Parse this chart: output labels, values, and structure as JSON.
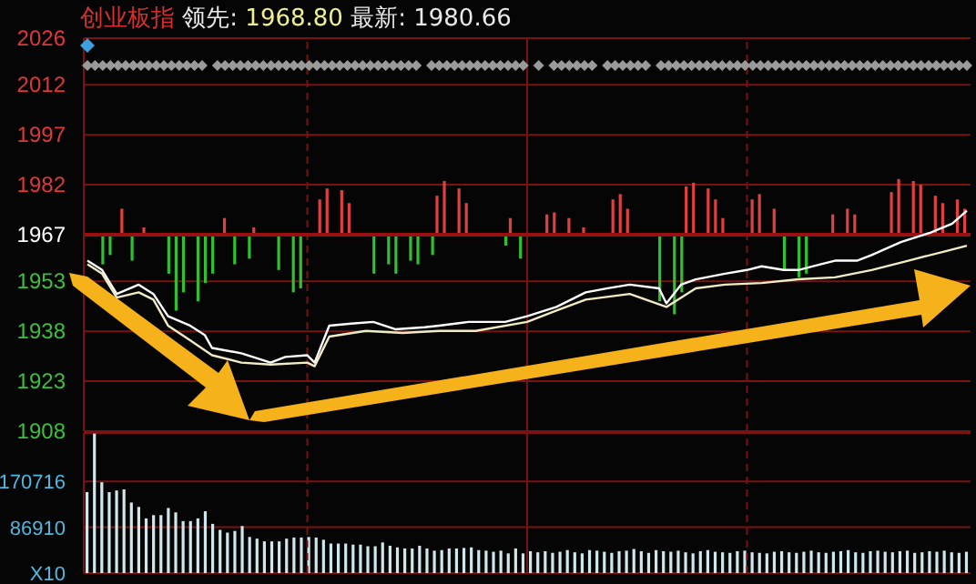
{
  "chart_data": [
    {
      "type": "line",
      "title": "创业板指 领先: 1968.80 最新: 1980.66",
      "categories": [
        null,
        null,
        null,
        null,
        null,
        null,
        null,
        null,
        null,
        null,
        null,
        null,
        null,
        null,
        null,
        null,
        null,
        null,
        null,
        null,
        null,
        null,
        null,
        null,
        null,
        null,
        null,
        null,
        null,
        null,
        null,
        null,
        null,
        null,
        null,
        null,
        null,
        null,
        null,
        null,
        null,
        null,
        null,
        null,
        null,
        null,
        null,
        null,
        null,
        null,
        null,
        null,
        null,
        null,
        null,
        null,
        null,
        null,
        null,
        null,
        null,
        null,
        null,
        null,
        null,
        null,
        null,
        null,
        null,
        null,
        null,
        null,
        null,
        null,
        null,
        null,
        null,
        null,
        null,
        null,
        null,
        null,
        null,
        null,
        null,
        null,
        null,
        null,
        null,
        null,
        null,
        null,
        null,
        null,
        null,
        null,
        null,
        null,
        null,
        null,
        null,
        null,
        null,
        null,
        null,
        null,
        null,
        null,
        null,
        null,
        null,
        null,
        null,
        null,
        null,
        null,
        null,
        null,
        null,
        null,
        null
      ],
      "ylim": [
        1908,
        2026
      ],
      "yticks": [
        1908,
        1923,
        1938,
        1953,
        1967,
        1982,
        1997,
        2012,
        2026
      ],
      "grid": true,
      "tick_labels": "y",
      "ref_lines": [
        {
          "axis": "y",
          "value": 1967,
          "color": "#9a1010"
        }
      ],
      "series": [
        {
          "type": "bar",
          "color": "#e04040",
          "base": [
            null,
            null,
            null,
            null,
            null,
            1967,
            null,
            null,
            1967,
            null,
            null,
            null,
            null,
            null,
            null,
            null,
            null,
            null,
            null,
            1967,
            null,
            null,
            null,
            1967,
            null,
            null,
            null,
            null,
            null,
            null,
            null,
            null,
            1967,
            1967,
            null,
            1967,
            1967,
            null,
            null,
            null,
            null,
            null,
            null,
            null,
            null,
            null,
            null,
            null,
            1967,
            1967,
            null,
            1967,
            1967,
            null,
            null,
            null,
            null,
            null,
            1967,
            null,
            null,
            null,
            null,
            1967,
            1967,
            null,
            1967,
            null,
            1967,
            null,
            null,
            null,
            1967,
            1967,
            1967,
            null,
            null,
            null,
            null,
            null,
            null,
            null,
            1967,
            1967,
            null,
            1967,
            1967,
            1967,
            null,
            null,
            null,
            1967,
            1967,
            null,
            1967,
            null,
            null,
            null,
            null,
            null,
            null,
            null,
            1967,
            null,
            1967,
            1967,
            null,
            null,
            null,
            null,
            1967,
            1967,
            null,
            1967,
            1967,
            null,
            1967,
            1967,
            null,
            1967,
            1967
          ],
          "values": [
            null,
            null,
            null,
            null,
            null,
            7.8,
            null,
            null,
            2.2,
            null,
            null,
            null,
            null,
            null,
            null,
            null,
            null,
            null,
            null,
            5.0,
            null,
            null,
            null,
            2.2,
            null,
            null,
            null,
            null,
            null,
            null,
            null,
            null,
            10.6,
            13.9,
            null,
            13.4,
            9.5,
            null,
            null,
            null,
            null,
            null,
            null,
            null,
            null,
            null,
            null,
            null,
            11.7,
            16.1,
            null,
            13.9,
            9.5,
            null,
            null,
            null,
            null,
            null,
            5.0,
            null,
            null,
            null,
            null,
            6.1,
            6.7,
            null,
            5.0,
            null,
            2.2,
            null,
            null,
            null,
            10.6,
            12.2,
            7.8,
            null,
            null,
            null,
            null,
            null,
            null,
            null,
            14.5,
            15.6,
            null,
            13.9,
            10.6,
            5.0,
            null,
            null,
            null,
            10.6,
            12.2,
            null,
            7.8,
            null,
            null,
            null,
            null,
            null,
            null,
            null,
            6.1,
            null,
            7.8,
            6.1,
            null,
            null,
            null,
            null,
            12.8,
            16.7,
            null,
            16.1,
            15.0,
            null,
            11.7,
            9.5,
            null,
            10.6,
            7.8
          ]
        },
        {
          "type": "bar",
          "color": "#30c030",
          "base": [
            null,
            null,
            1967,
            1967,
            null,
            null,
            1967,
            null,
            null,
            null,
            null,
            1967,
            1967,
            1967,
            null,
            1967,
            1967,
            1967,
            null,
            null,
            1967,
            null,
            1967,
            null,
            null,
            null,
            1967,
            null,
            1967,
            1967,
            null,
            null,
            null,
            null,
            null,
            null,
            null,
            null,
            null,
            1967,
            null,
            1967,
            1967,
            null,
            1967,
            1967,
            null,
            1967,
            null,
            null,
            null,
            null,
            null,
            null,
            null,
            null,
            null,
            1967,
            null,
            1967,
            null,
            null,
            null,
            null,
            null,
            null,
            null,
            null,
            null,
            null,
            null,
            null,
            null,
            null,
            null,
            null,
            null,
            null,
            1967,
            null,
            1967,
            1967,
            null,
            null,
            null,
            null,
            null,
            null,
            null,
            null,
            null,
            null,
            null,
            null,
            null,
            1967,
            null,
            1967,
            1967,
            null,
            null,
            null,
            null,
            null,
            null,
            null,
            null,
            null,
            null,
            null,
            null,
            null,
            null,
            null,
            null,
            null,
            null,
            null,
            null,
            null,
            null
          ],
          "values": [
            null,
            null,
            -8.9,
            -6.1,
            null,
            null,
            -7.8,
            null,
            null,
            null,
            null,
            -11.7,
            -22.8,
            -17.3,
            null,
            -20.0,
            -14.5,
            -11.7,
            null,
            null,
            -8.9,
            null,
            -7.2,
            null,
            null,
            null,
            -10.6,
            null,
            -17.3,
            -16.1,
            null,
            null,
            null,
            null,
            null,
            null,
            null,
            null,
            null,
            -11.7,
            null,
            -8.9,
            -11.7,
            null,
            -7.8,
            -8.9,
            null,
            -6.1,
            null,
            null,
            null,
            null,
            null,
            null,
            null,
            null,
            null,
            -3.3,
            null,
            -7.2,
            null,
            null,
            null,
            null,
            null,
            null,
            null,
            null,
            null,
            null,
            null,
            null,
            null,
            null,
            null,
            null,
            null,
            null,
            -20.0,
            null,
            -23.9,
            -17.3,
            null,
            null,
            null,
            null,
            null,
            null,
            null,
            null,
            null,
            null,
            null,
            null,
            null,
            -10.6,
            null,
            -12.8,
            -11.7,
            null,
            null,
            null,
            null,
            null,
            null,
            null,
            null,
            null,
            null,
            null,
            null,
            null,
            null,
            null,
            null,
            null,
            null,
            null,
            null,
            null,
            null
          ]
        },
        {
          "color": "#ffffff",
          "values": [
            1959.2,
            null,
            1956.4,
            null,
            1949.2,
            null,
            null,
            1952.0,
            null,
            1949.2,
            null,
            1942.5,
            null,
            null,
            1939.7,
            null,
            1936.9,
            1933.0,
            null,
            null,
            null,
            1931.4,
            null,
            null,
            null,
            1928.6,
            null,
            1930.3,
            null,
            null,
            1930.8,
            1928.6,
            null,
            1939.7,
            null,
            null,
            1940.3,
            null,
            null,
            1940.8,
            null,
            null,
            1938.6,
            null,
            null,
            null,
            1939.2,
            null,
            1939.7,
            null,
            null,
            null,
            1940.8,
            null,
            null,
            null,
            null,
            1940.8,
            null,
            null,
            1942.5,
            null,
            null,
            null,
            1945.3,
            null,
            null,
            null,
            1949.7,
            null,
            null,
            1950.9,
            null,
            null,
            1952.0,
            null,
            null,
            null,
            1950.9,
            1946.4,
            null,
            1952.0,
            null,
            1953.6,
            null,
            null,
            null,
            1955.3,
            null,
            null,
            1956.4,
            null,
            1957.5,
            null,
            null,
            1956.4,
            null,
            1956.4,
            null,
            null,
            1958.1,
            null,
            1959.2,
            null,
            null,
            1959.2,
            null,
            1960.9,
            null,
            null,
            null,
            1964.8,
            null,
            null,
            null,
            1967.6,
            null,
            null,
            1970.3,
            null,
            1974.2
          ]
        },
        {
          "color": "#f2ecc4",
          "values": [
            1958.1,
            null,
            1955.3,
            null,
            1948.1,
            null,
            null,
            1949.7,
            null,
            1947.5,
            null,
            1939.7,
            null,
            null,
            1935.3,
            null,
            null,
            1930.8,
            null,
            null,
            null,
            1928.6,
            null,
            null,
            null,
            1928.0,
            null,
            null,
            null,
            null,
            1928.6,
            1927.5,
            null,
            1936.4,
            null,
            null,
            null,
            null,
            1938.1,
            null,
            null,
            null,
            null,
            1937.5,
            null,
            null,
            null,
            null,
            1938.1,
            null,
            null,
            null,
            null,
            1938.1,
            null,
            null,
            null,
            null,
            null,
            null,
            1940.8,
            null,
            null,
            null,
            1944.2,
            null,
            null,
            null,
            1947.5,
            null,
            null,
            null,
            null,
            null,
            1949.2,
            null,
            null,
            null,
            null,
            1945.3,
            null,
            null,
            null,
            1950.9,
            null,
            null,
            null,
            1952.0,
            null,
            null,
            null,
            null,
            1952.5,
            null,
            null,
            null,
            null,
            1953.6,
            null,
            null,
            null,
            null,
            1954.2,
            null,
            null,
            null,
            null,
            1956.4,
            null,
            null,
            null,
            null,
            1959.2,
            null,
            null,
            null,
            null,
            1962.0,
            null,
            null,
            1963.7
          ]
        }
      ]
    },
    {
      "type": "bar",
      "categories": [
        null,
        null,
        null,
        null,
        null,
        null,
        null,
        null,
        null,
        null,
        null,
        null,
        null,
        null,
        null,
        null,
        null,
        null,
        null,
        null,
        null,
        null,
        null,
        null,
        null,
        null,
        null,
        null,
        null,
        null,
        null,
        null,
        null,
        null,
        null,
        null,
        null,
        null,
        null,
        null,
        null,
        null,
        null,
        null,
        null,
        null,
        null,
        null,
        null,
        null,
        null,
        null,
        null,
        null,
        null,
        null,
        null,
        null,
        null,
        null,
        null,
        null,
        null,
        null,
        null,
        null,
        null,
        null,
        null,
        null,
        null,
        null,
        null,
        null,
        null,
        null,
        null,
        null,
        null,
        null,
        null,
        null,
        null,
        null,
        null,
        null,
        null,
        null,
        null,
        null,
        null,
        null,
        null,
        null,
        null,
        null,
        null,
        null,
        null,
        null,
        null,
        null,
        null,
        null,
        null,
        null,
        null,
        null,
        null,
        null,
        null,
        null,
        null,
        null,
        null,
        null,
        null,
        null,
        null,
        null
      ],
      "ylim": [
        3104,
        259182
      ],
      "yticks": [
        {
          "value": 3104,
          "label": "X10"
        },
        86910,
        170716
      ],
      "grid": true,
      "tick_labels": "y",
      "color": "#cfe6ea",
      "values": [
        148000,
        255000,
        166000,
        148000,
        151000,
        153000,
        129000,
        121000,
        100000,
        106000,
        106000,
        119000,
        111000,
        95000,
        95000,
        100000,
        113000,
        90000,
        79000,
        74000,
        77000,
        86000,
        66000,
        63000,
        58000,
        58000,
        58000,
        63000,
        65000,
        65000,
        66000,
        65000,
        61000,
        54000,
        54000,
        54000,
        52000,
        52000,
        49000,
        49000,
        56000,
        50000,
        47000,
        45000,
        45000,
        50000,
        45000,
        41000,
        42000,
        45000,
        45000,
        46000,
        47000,
        42000,
        41000,
        39000,
        41000,
        36000,
        45000,
        36000,
        40000,
        38000,
        40000,
        37000,
        39000,
        42000,
        38000,
        36000,
        42000,
        41000,
        39000,
        37000,
        40000,
        41000,
        44000,
        40000,
        37000,
        42000,
        40000,
        39000,
        41000,
        38000,
        36000,
        40000,
        42000,
        39000,
        38000,
        37000,
        40000,
        41000,
        38000,
        37000,
        36000,
        39000,
        40000,
        38000,
        37000,
        39000,
        41000,
        38000,
        37000,
        39000,
        40000,
        42000,
        38000,
        37000,
        40000,
        41000,
        39000,
        38000,
        40000,
        41000,
        37000,
        38000,
        40000,
        39000,
        41000,
        38000,
        37000,
        39000
      ]
    }
  ]
}
